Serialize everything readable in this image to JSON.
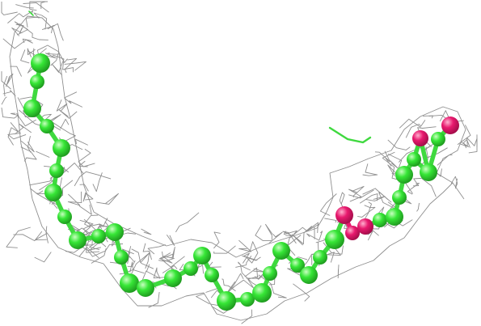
{
  "image": {
    "subject": "electron-density-mesh-around-ball-and-stick-molecule",
    "colors": {
      "background": "#ffffff",
      "mesh": "#8e8e8e",
      "carbon": "#36e636",
      "carbon_highlight": "#c8ffc0",
      "carbon_shade": "#1f9a1f",
      "oxygen": "#e8196e",
      "oxygen_highlight": "#ffb0cf",
      "oxygen_shade": "#a30d4a",
      "bond": "#3fd93f"
    }
  }
}
